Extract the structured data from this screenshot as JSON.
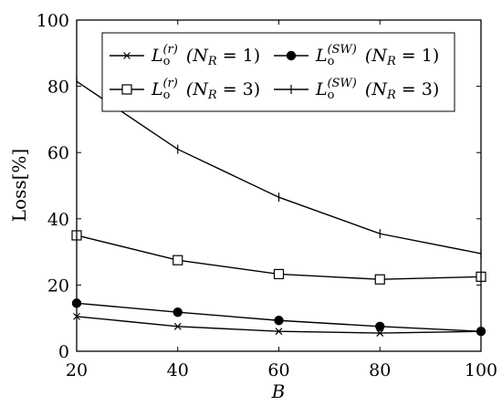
{
  "chart_data": {
    "type": "line",
    "title": "",
    "xlabel": "B",
    "ylabel": "Loss[%]",
    "xlim": [
      20,
      100
    ],
    "ylim": [
      0,
      100
    ],
    "xticks": [
      20,
      40,
      60,
      80,
      100
    ],
    "yticks": [
      0,
      20,
      40,
      60,
      80,
      100
    ],
    "grid": false,
    "legend_position": "top-right",
    "x": [
      20,
      40,
      60,
      80,
      100
    ],
    "series": [
      {
        "name": "Lo(r) (NR = 1)",
        "marker": "x",
        "values": [
          10.5,
          7.5,
          6.0,
          5.5,
          6.0
        ]
      },
      {
        "name": "Lo(SW) (NR = 1)",
        "marker": "circle",
        "values": [
          14.5,
          11.8,
          9.3,
          7.5,
          6.0
        ]
      },
      {
        "name": "Lo(r) (NR = 3)",
        "marker": "square",
        "values": [
          35.0,
          27.5,
          23.3,
          21.7,
          22.5
        ]
      },
      {
        "name": "Lo(SW) (NR = 3)",
        "marker": "plus",
        "values": [
          81.5,
          61.0,
          46.5,
          35.5,
          29.5
        ]
      }
    ],
    "legend": [
      {
        "main": "L",
        "sub": "o",
        "sup": "(r)",
        "tail": "(N",
        "tail_sub": "R",
        "tail_end": " = 1)"
      },
      {
        "main": "L",
        "sub": "o",
        "sup": "(SW)",
        "tail": "(N",
        "tail_sub": "R",
        "tail_end": " = 1)"
      },
      {
        "main": "L",
        "sub": "o",
        "sup": "(r)",
        "tail": "(N",
        "tail_sub": "R",
        "tail_end": " = 3)"
      },
      {
        "main": "L",
        "sub": "o",
        "sup": "(SW)",
        "tail": "(N",
        "tail_sub": "R",
        "tail_end": " = 3)"
      }
    ]
  }
}
